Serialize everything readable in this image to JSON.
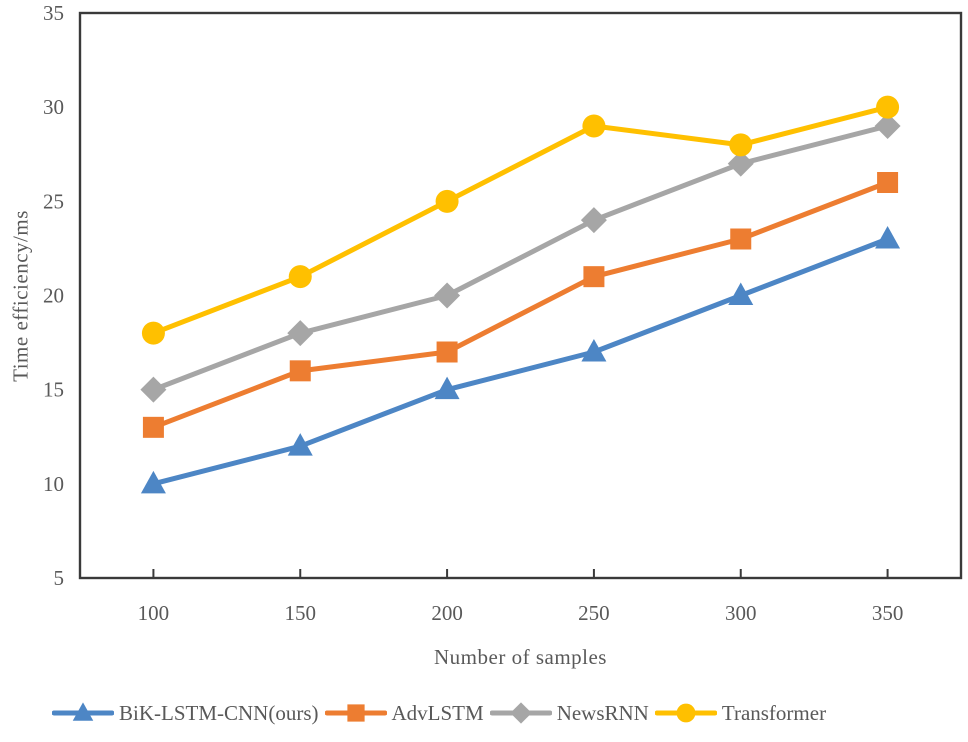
{
  "chart_data": {
    "type": "line",
    "title": "",
    "xlabel": "Number of samples",
    "ylabel": "Time efficiency/ms",
    "x": [
      100,
      150,
      200,
      250,
      300,
      350
    ],
    "ylim": [
      5,
      35
    ],
    "yticks": [
      5,
      10,
      15,
      20,
      25,
      30,
      35
    ],
    "grid": false,
    "legend_position": "bottom",
    "axis_color": "#3a3a3a",
    "text_color": "#595959",
    "series": [
      {
        "name": "BiK-LSTM-CNN(ours)",
        "marker": "triangle",
        "color": "#4D86C5",
        "values": [
          10,
          12,
          15,
          17,
          20,
          23
        ]
      },
      {
        "name": "AdvLSTM",
        "marker": "square",
        "color": "#ED7D31",
        "values": [
          13,
          16,
          17,
          21,
          23,
          26
        ]
      },
      {
        "name": "NewsRNN",
        "marker": "diamond",
        "color": "#A6A6A6",
        "values": [
          15,
          18,
          20,
          24,
          27,
          29
        ]
      },
      {
        "name": "Transformer",
        "marker": "circle",
        "color": "#FFC000",
        "values": [
          18,
          21,
          25,
          29,
          28,
          30
        ]
      }
    ]
  }
}
